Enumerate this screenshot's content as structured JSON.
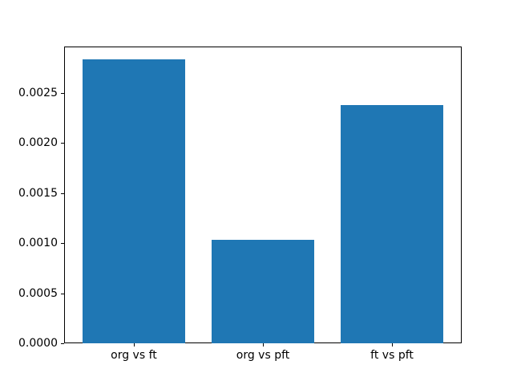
{
  "chart_data": {
    "type": "bar",
    "categories": [
      "org vs ft",
      "org vs pft",
      "ft vs pft"
    ],
    "values": [
      0.00283,
      0.00103,
      0.00238
    ],
    "title": "",
    "xlabel": "",
    "ylabel": "",
    "ylim": [
      0,
      0.00296
    ],
    "yticks": [
      0.0,
      0.0005,
      0.001,
      0.0015,
      0.002,
      0.0025
    ],
    "ytick_labels": [
      "0.0000",
      "0.0005",
      "0.0010",
      "0.0015",
      "0.0020",
      "0.0025"
    ],
    "bar_color": "#1f77b4",
    "bar_width_fraction": 0.8,
    "grid": false,
    "legend": null
  }
}
